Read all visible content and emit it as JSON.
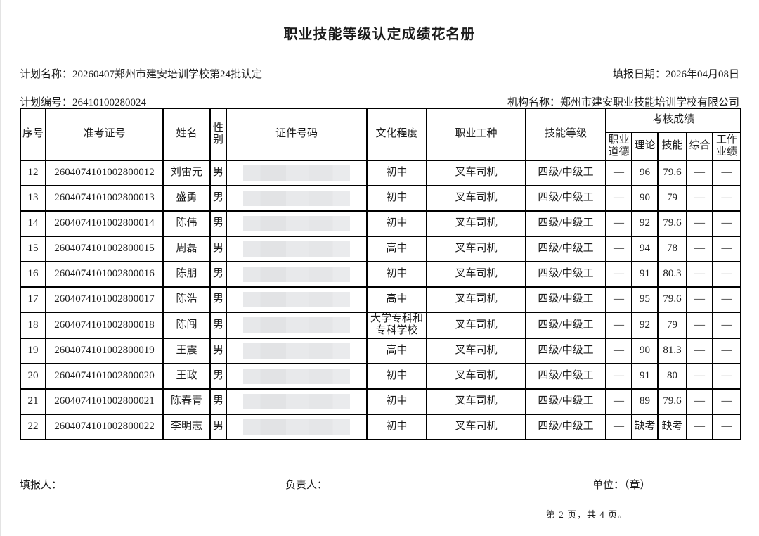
{
  "page": {
    "title": "职业技能等级认定成绩花名册",
    "meta": {
      "plan_name_label": "计划名称：",
      "plan_name": "20260407郑州市建安培训学校第24批认定",
      "report_date_label": "填报日期：",
      "report_date": "2026年04月08日",
      "plan_no_label": "计划编号：",
      "plan_no": "26410100280024",
      "org_name_label": "机构名称：",
      "org_name": "郑州市建安职业技能培训学校有限公司"
    },
    "footer": {
      "filler_label": "填报人：",
      "manager_label": "负责人：",
      "unit_label": "单位：（章）",
      "page_indicator": "第 2 页，共 4 页。"
    }
  },
  "table": {
    "headers": {
      "no": "序号",
      "exam_no": "准考证号",
      "name": "姓名",
      "gender": "性别",
      "id_no": "证件号码",
      "education": "文化程度",
      "occupation": "职业工种",
      "level": "技能等级",
      "scores_group": "考核成绩",
      "ethics": "职业道德",
      "theory": "理论",
      "skill": "技能",
      "comprehensive": "综合",
      "work": "工作业绩"
    },
    "rows": [
      {
        "no": "12",
        "exam_no": "2604074101002800012",
        "name": "刘雷元",
        "gender": "男",
        "education": "初中",
        "occupation": "叉车司机",
        "level": "四级/中级工",
        "ethics": "—",
        "theory": "96",
        "skill": "79.6",
        "comprehensive": "—",
        "work": "—"
      },
      {
        "no": "13",
        "exam_no": "2604074101002800013",
        "name": "盛勇",
        "gender": "男",
        "education": "初中",
        "occupation": "叉车司机",
        "level": "四级/中级工",
        "ethics": "—",
        "theory": "90",
        "skill": "79",
        "comprehensive": "—",
        "work": "—"
      },
      {
        "no": "14",
        "exam_no": "2604074101002800014",
        "name": "陈伟",
        "gender": "男",
        "education": "初中",
        "occupation": "叉车司机",
        "level": "四级/中级工",
        "ethics": "—",
        "theory": "92",
        "skill": "79.6",
        "comprehensive": "—",
        "work": "—"
      },
      {
        "no": "15",
        "exam_no": "2604074101002800015",
        "name": "周磊",
        "gender": "男",
        "education": "高中",
        "occupation": "叉车司机",
        "level": "四级/中级工",
        "ethics": "—",
        "theory": "94",
        "skill": "78",
        "comprehensive": "—",
        "work": "—"
      },
      {
        "no": "16",
        "exam_no": "2604074101002800016",
        "name": "陈朋",
        "gender": "男",
        "education": "初中",
        "occupation": "叉车司机",
        "level": "四级/中级工",
        "ethics": "—",
        "theory": "91",
        "skill": "80.3",
        "comprehensive": "—",
        "work": "—"
      },
      {
        "no": "17",
        "exam_no": "2604074101002800017",
        "name": "陈浩",
        "gender": "男",
        "education": "高中",
        "occupation": "叉车司机",
        "level": "四级/中级工",
        "ethics": "—",
        "theory": "95",
        "skill": "79.6",
        "comprehensive": "—",
        "work": "—"
      },
      {
        "no": "18",
        "exam_no": "2604074101002800018",
        "name": "陈闯",
        "gender": "男",
        "education": "大学专科和专科学校",
        "occupation": "叉车司机",
        "level": "四级/中级工",
        "ethics": "—",
        "theory": "92",
        "skill": "79",
        "comprehensive": "—",
        "work": "—"
      },
      {
        "no": "19",
        "exam_no": "2604074101002800019",
        "name": "王震",
        "gender": "男",
        "education": "高中",
        "occupation": "叉车司机",
        "level": "四级/中级工",
        "ethics": "—",
        "theory": "90",
        "skill": "81.3",
        "comprehensive": "—",
        "work": "—"
      },
      {
        "no": "20",
        "exam_no": "2604074101002800020",
        "name": "王政",
        "gender": "男",
        "education": "初中",
        "occupation": "叉车司机",
        "level": "四级/中级工",
        "ethics": "—",
        "theory": "91",
        "skill": "80",
        "comprehensive": "—",
        "work": "—"
      },
      {
        "no": "21",
        "exam_no": "2604074101002800021",
        "name": "陈春青",
        "gender": "男",
        "education": "初中",
        "occupation": "叉车司机",
        "level": "四级/中级工",
        "ethics": "—",
        "theory": "89",
        "skill": "79.6",
        "comprehensive": "—",
        "work": "—"
      },
      {
        "no": "22",
        "exam_no": "2604074101002800022",
        "name": "李明志",
        "gender": "男",
        "education": "初中",
        "occupation": "叉车司机",
        "level": "四级/中级工",
        "ethics": "—",
        "theory": "缺考",
        "skill": "缺考",
        "comprehensive": "—",
        "work": "—"
      }
    ]
  }
}
